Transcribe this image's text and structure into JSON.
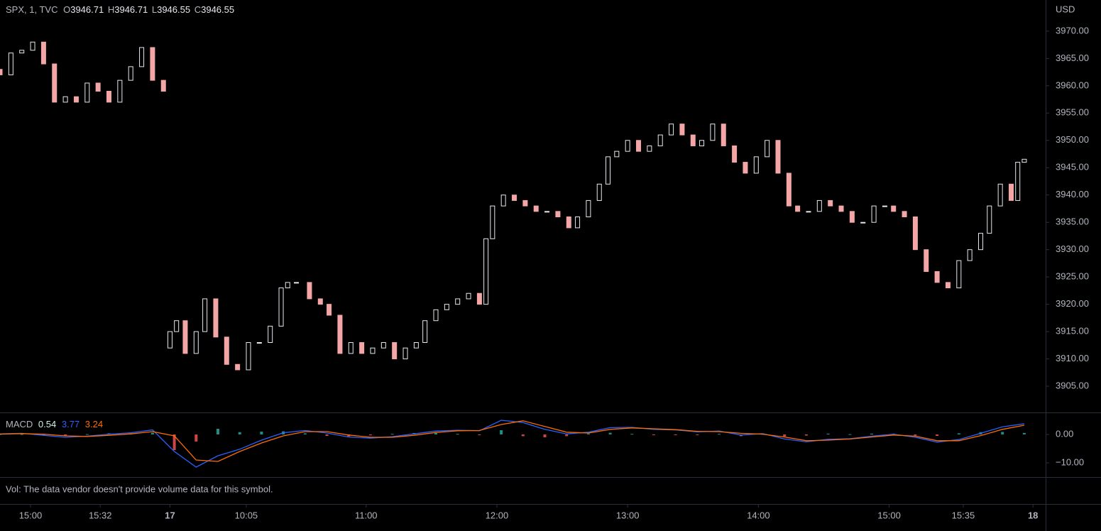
{
  "header": {
    "symbol": "SPX, 1, TVC",
    "ohlc": [
      {
        "label": "O",
        "value": 3946.71
      },
      {
        "label": "H",
        "value": 3946.71
      },
      {
        "label": "L",
        "value": 3946.55
      },
      {
        "label": "C",
        "value": 3946.55
      }
    ]
  },
  "volume_note": "Vol: The data vendor doesn't provide volume data for this symbol.",
  "chart_data": [
    {
      "type": "candlestick",
      "y_unit": "USD",
      "up_color": "#e6e8ee",
      "down_color": "#f4a6a6",
      "xlim": [
        0,
        479.8
      ],
      "xticks": [
        {
          "value": 14,
          "label": "15:00"
        },
        {
          "value": 46,
          "label": "15:32"
        },
        {
          "value": 78,
          "label": "17"
        },
        {
          "value": 113,
          "label": "10:05"
        },
        {
          "value": 168,
          "label": "11:00"
        },
        {
          "value": 228,
          "label": "12:00"
        },
        {
          "value": 288,
          "label": "13:00"
        },
        {
          "value": 348,
          "label": "14:00"
        },
        {
          "value": 408,
          "label": "15:00"
        },
        {
          "value": 442,
          "label": "15:35"
        },
        {
          "value": 474,
          "label": "18"
        }
      ],
      "ylim": [
        3900.2,
        3975.7
      ],
      "yticks": [
        {
          "value": 3970,
          "label": "3970.00"
        },
        {
          "value": 3965,
          "label": "3965.00"
        },
        {
          "value": 3960,
          "label": "3960.00"
        },
        {
          "value": 3955,
          "label": "3955.00"
        },
        {
          "value": 3950,
          "label": "3950.00"
        },
        {
          "value": 3945,
          "label": "3945.00"
        },
        {
          "value": 3940,
          "label": "3940.00"
        },
        {
          "value": 3935,
          "label": "3935.00"
        },
        {
          "value": 3930,
          "label": "3930.00"
        },
        {
          "value": 3925,
          "label": "3925.00"
        },
        {
          "value": 3920,
          "label": "3920.00"
        },
        {
          "value": 3915,
          "label": "3915.00"
        },
        {
          "value": 3910,
          "label": "3910.00"
        },
        {
          "value": 3905,
          "label": "3905.00"
        }
      ],
      "x": [
        0,
        5,
        10,
        15,
        20,
        25,
        30,
        35,
        40,
        45,
        50,
        55,
        60,
        65,
        70,
        75,
        78,
        81,
        85,
        90,
        94,
        99,
        104,
        109,
        114,
        119,
        124,
        129,
        132,
        136,
        142,
        147,
        151,
        156,
        161,
        166,
        171,
        176,
        181,
        186,
        191,
        195,
        200,
        205,
        210,
        215,
        220,
        223,
        226,
        231,
        236,
        241,
        246,
        251,
        256,
        261,
        265,
        270,
        275,
        279,
        283,
        288,
        293,
        298,
        303,
        308,
        313,
        318,
        322,
        327,
        332,
        337,
        342,
        347,
        352,
        357,
        362,
        366,
        371,
        376,
        381,
        386,
        391,
        396,
        401,
        406,
        410,
        415,
        420,
        425,
        430,
        435,
        440,
        445,
        450,
        454,
        459,
        464,
        467,
        470
      ],
      "open": [
        3963,
        3962,
        3966,
        3966.5,
        3968,
        3964,
        3957,
        3958,
        3957,
        3960.5,
        3959,
        3957,
        3961,
        3963.5,
        3967,
        3961,
        3912,
        3915,
        3917,
        3911,
        3915,
        3921,
        3914,
        3909,
        3908,
        3913,
        3913,
        3916,
        3923,
        3924,
        3924,
        3921,
        3920,
        3918,
        3911,
        3913,
        3911,
        3912,
        3913,
        3910,
        3912,
        3913,
        3917,
        3919,
        3920,
        3921,
        3922,
        3920,
        3932,
        3938,
        3940,
        3939,
        3938,
        3937,
        3937,
        3936,
        3934,
        3936,
        3939,
        3942,
        3947,
        3948,
        3950,
        3948,
        3949,
        3951,
        3953,
        3951,
        3949,
        3950,
        3953,
        3949,
        3946,
        3944,
        3947,
        3950,
        3944,
        3938,
        3937,
        3937,
        3939,
        3938,
        3937,
        3935,
        3935,
        3938,
        3938,
        3937,
        3936,
        3930,
        3926,
        3924,
        3923,
        3928,
        3930,
        3933,
        3938,
        3942,
        3939,
        3946
      ],
      "close": [
        3962,
        3966,
        3966.5,
        3968,
        3964,
        3957,
        3958,
        3957,
        3960.5,
        3959,
        3957,
        3961,
        3963.5,
        3967,
        3961,
        3959,
        3915,
        3917,
        3911,
        3915,
        3921,
        3914,
        3909,
        3908,
        3913,
        3913,
        3916,
        3923,
        3924,
        3924,
        3921,
        3920,
        3918,
        3911,
        3913,
        3911,
        3912,
        3913,
        3910,
        3912,
        3913,
        3917,
        3919,
        3920,
        3921,
        3922,
        3920,
        3932,
        3938,
        3940,
        3939,
        3938,
        3937,
        3937,
        3936,
        3934,
        3936,
        3939,
        3942,
        3947,
        3948,
        3950,
        3948,
        3949,
        3951,
        3953,
        3951,
        3949,
        3950,
        3953,
        3949,
        3946,
        3944,
        3947,
        3950,
        3944,
        3938,
        3937,
        3937,
        3939,
        3938,
        3937,
        3935,
        3935,
        3938,
        3938,
        3937,
        3936,
        3930,
        3926,
        3924,
        3923,
        3928,
        3930,
        3933,
        3938,
        3942,
        3939,
        3946,
        3946.55
      ]
    },
    {
      "type": "macd",
      "title": "MACD",
      "readout": [
        {
          "value": 0.54,
          "color": "#d1f2e8"
        },
        {
          "value": 3.77,
          "color": "#2962ff"
        },
        {
          "value": 3.24,
          "color": "#ff6d00"
        }
      ],
      "ylim": [
        -15,
        7.75
      ],
      "yticks": [
        {
          "value": 0,
          "label": "0.00"
        },
        {
          "value": -10,
          "label": "−10.00"
        }
      ],
      "x": [
        0,
        10,
        20,
        30,
        40,
        50,
        60,
        70,
        80,
        90,
        100,
        110,
        120,
        130,
        140,
        150,
        160,
        170,
        180,
        190,
        200,
        210,
        220,
        230,
        240,
        250,
        260,
        270,
        280,
        290,
        300,
        310,
        320,
        330,
        340,
        350,
        360,
        370,
        380,
        390,
        400,
        410,
        420,
        430,
        440,
        450,
        460,
        470
      ],
      "series": [
        {
          "color": "#2962ff",
          "values": [
            0.2,
            0.4,
            -0.3,
            -1.0,
            -0.6,
            0.1,
            0.6,
            1.6,
            -6.0,
            -11.5,
            -7.5,
            -5.2,
            -2.0,
            0.6,
            1.4,
            0.5,
            -0.9,
            -1.3,
            -0.8,
            0.2,
            1.2,
            1.5,
            1.3,
            5.0,
            4.2,
            1.8,
            0.2,
            0.8,
            2.4,
            2.5,
            1.8,
            1.6,
            0.9,
            1.2,
            -0.2,
            0.3,
            -1.6,
            -2.6,
            -1.7,
            -1.5,
            -0.6,
            0.1,
            -1.0,
            -2.7,
            -1.8,
            0.4,
            2.7,
            3.77
          ]
        },
        {
          "color": "#ff6d00",
          "values": [
            0.1,
            0.3,
            0.1,
            -0.5,
            -0.7,
            -0.3,
            0.2,
            1.0,
            -0.5,
            -9.0,
            -9.5,
            -6.0,
            -3.0,
            -0.5,
            1.0,
            1.0,
            -0.2,
            -1.0,
            -1.0,
            -0.3,
            0.7,
            1.3,
            1.4,
            3.5,
            4.8,
            2.8,
            0.8,
            0.5,
            1.8,
            2.3,
            2.0,
            1.7,
            1.1,
            1.0,
            0.4,
            0.1,
            -0.9,
            -2.2,
            -2.0,
            -1.6,
            -0.9,
            -0.2,
            -0.6,
            -2.2,
            -2.2,
            -0.4,
            1.8,
            3.24
          ]
        }
      ],
      "histogram": {
        "positive_color": "#26a69a",
        "negative_color": "#ef5350",
        "values": [
          0.1,
          0.1,
          -0.4,
          -0.5,
          0.1,
          0.4,
          0.4,
          0.6,
          -5.5,
          -2.5,
          2.0,
          0.8,
          1.0,
          1.1,
          0.4,
          -0.5,
          -0.7,
          -0.3,
          0.2,
          0.5,
          0.5,
          0.2,
          -0.1,
          1.5,
          -0.6,
          -1.0,
          -0.6,
          0.3,
          0.6,
          0.2,
          -0.2,
          -0.1,
          -0.2,
          0.2,
          -0.6,
          0.2,
          -0.7,
          -0.4,
          0.3,
          0.1,
          0.3,
          0.3,
          -0.4,
          -0.5,
          0.4,
          0.8,
          0.9,
          0.54
        ]
      }
    }
  ]
}
